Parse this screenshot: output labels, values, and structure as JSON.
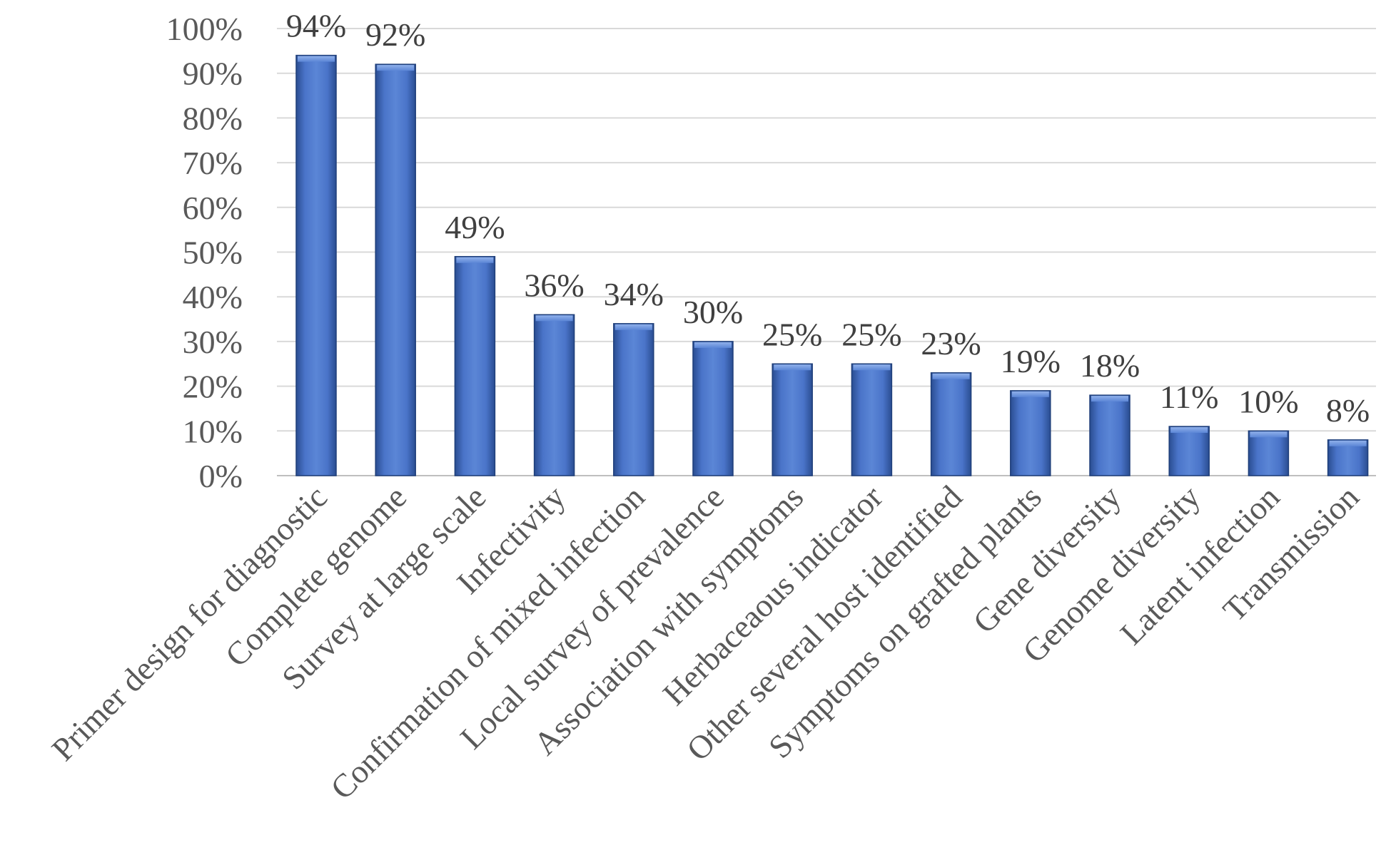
{
  "chart_data": {
    "type": "bar",
    "title": "",
    "xlabel": "",
    "ylabel": "",
    "ylim": [
      0,
      100
    ],
    "yticks": [
      "0%",
      "10%",
      "20%",
      "30%",
      "40%",
      "50%",
      "60%",
      "70%",
      "80%",
      "90%",
      "100%"
    ],
    "grid": true,
    "bar_color": "#4472c4",
    "categories": [
      "Primer design for diagnostic",
      "Complete genome",
      "Survey at large scale",
      "Infectivity",
      "Confirmation of mixed infection",
      "Local survey of prevalence",
      "Association with symptoms",
      "Herbaceaous indicator",
      "Other several host identified",
      "Symptoms on grafted plants",
      "Gene diversity",
      "Genome diversity",
      "Latent infection",
      "Transmission"
    ],
    "values": [
      94,
      92,
      49,
      36,
      34,
      30,
      25,
      25,
      23,
      19,
      18,
      11,
      10,
      8
    ],
    "data_labels": [
      "94%",
      "92%",
      "49%",
      "36%",
      "34%",
      "30%",
      "25%",
      "25%",
      "23%",
      "19%",
      "18%",
      "11%",
      "10%",
      "8%"
    ]
  }
}
